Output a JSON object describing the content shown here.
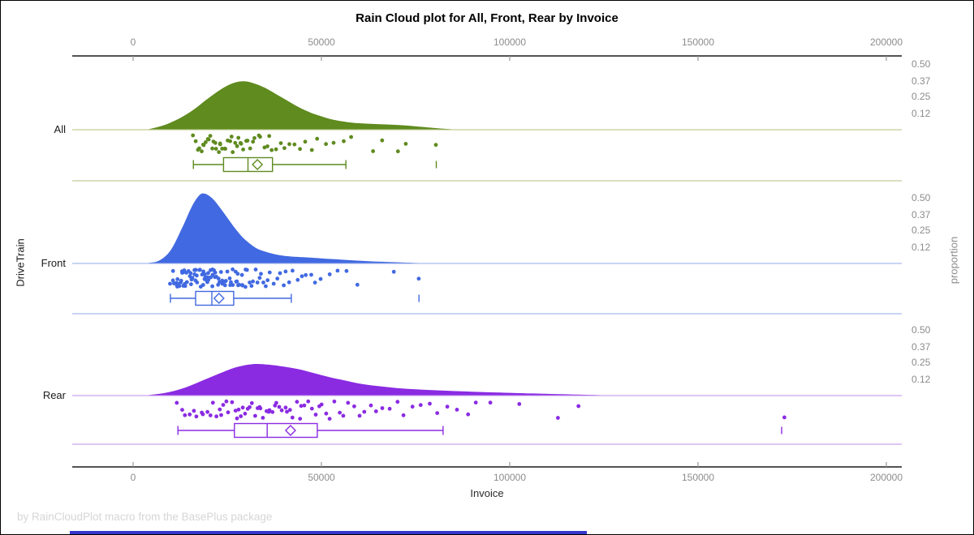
{
  "title": "Rain Cloud plot for All, Front, Rear by Invoice",
  "footer": "by RainCloudPlot macro from the BasePlus package",
  "colors": {
    "all": "#5f8b1f",
    "all_light": "#c3cc96",
    "front": "#4169e1",
    "front_light": "#a9bbea",
    "rear": "#8a2be2",
    "rear_light": "#c9a4ee",
    "axis": "#1a1a1a",
    "tick": "#9a9a9a",
    "bottom_bar": "#3535cd"
  },
  "chart_data": {
    "type": "raincloud",
    "title": "Rain Cloud plot for All, Front, Rear by Invoice",
    "xlabel": "Invoice",
    "ylabel": "DriveTrain",
    "y2label": "proportion",
    "x_tick_labels": [
      "0",
      "50000",
      "100000",
      "150000",
      "200000"
    ],
    "x_tick_values": [
      0,
      50000,
      100000,
      150000,
      200000
    ],
    "x_range": [
      -16000,
      204000
    ],
    "proportion_tick_labels": [
      "0.50",
      "0.37",
      "0.25",
      "0.12"
    ],
    "proportion_tick_values": [
      0.5,
      0.37,
      0.25,
      0.12
    ],
    "groups": [
      {
        "name": "All",
        "color": "#5f8b1f",
        "light_color": "#c3cc96",
        "density_x": [
          4000,
          8000,
          12000,
          16000,
          20000,
          24000,
          27000,
          29500,
          32000,
          35000,
          38000,
          41000,
          44000,
          47000,
          50000,
          53000,
          57000,
          61000,
          65000,
          69000,
          73000,
          77000,
          81000,
          85000
        ],
        "density_p": [
          0.0,
          0.03,
          0.08,
          0.15,
          0.24,
          0.32,
          0.36,
          0.37,
          0.355,
          0.32,
          0.27,
          0.22,
          0.17,
          0.13,
          0.1,
          0.075,
          0.055,
          0.045,
          0.04,
          0.035,
          0.028,
          0.018,
          0.008,
          0.0
        ],
        "points": [
          16200,
          16800,
          17300,
          17800,
          18200,
          18600,
          19000,
          19400,
          19800,
          20100,
          20500,
          20900,
          21300,
          21700,
          22100,
          22500,
          22900,
          23300,
          23800,
          24200,
          24600,
          25100,
          25500,
          26000,
          26400,
          26900,
          27400,
          27900,
          28400,
          28900,
          29400,
          30000,
          30500,
          31100,
          31800,
          32400,
          33100,
          33800,
          34600,
          35400,
          36200,
          37100,
          38000,
          39000,
          40100,
          41300,
          42600,
          44000,
          45500,
          47200,
          49000,
          51000,
          53200,
          55600,
          58200,
          63400,
          66000,
          70300,
          72600,
          80600
        ],
        "box": {
          "whisker_low": 16000,
          "q1": 24000,
          "median": 30500,
          "mean": 33000,
          "q3": 37000,
          "whisker_high": 56500,
          "outliers": [
            80500
          ]
        }
      },
      {
        "name": "Front",
        "color": "#4169e1",
        "light_color": "#a9bbea",
        "density_x": [
          4000,
          7000,
          10000,
          13000,
          15500,
          17500,
          19000,
          21000,
          23000,
          25000,
          27000,
          29000,
          31000,
          33000,
          36000,
          39000,
          42000,
          45000,
          48000,
          52000,
          56000,
          60000,
          64000,
          68000,
          72000,
          76000
        ],
        "density_p": [
          0.0,
          0.02,
          0.1,
          0.27,
          0.43,
          0.52,
          0.535,
          0.5,
          0.43,
          0.35,
          0.27,
          0.2,
          0.15,
          0.11,
          0.08,
          0.06,
          0.05,
          0.045,
          0.04,
          0.032,
          0.025,
          0.018,
          0.012,
          0.008,
          0.004,
          0.0
        ],
        "points": [
          9900,
          10300,
          10600,
          10900,
          11200,
          11500,
          11700,
          11900,
          12100,
          12300,
          12500,
          12700,
          12900,
          13100,
          13300,
          13500,
          13700,
          13900,
          14100,
          14300,
          14500,
          14700,
          14900,
          15100,
          15300,
          15500,
          15700,
          15900,
          16100,
          16300,
          16500,
          16700,
          16900,
          17100,
          17300,
          17500,
          17700,
          17900,
          18100,
          18300,
          18500,
          18700,
          18900,
          19100,
          19300,
          19500,
          19700,
          19900,
          20100,
          20300,
          20500,
          20700,
          20900,
          21100,
          21300,
          21500,
          21700,
          21900,
          22100,
          22400,
          22700,
          23000,
          23300,
          23600,
          23900,
          24200,
          24500,
          24800,
          25100,
          25400,
          25700,
          26000,
          26300,
          26600,
          26900,
          27200,
          27500,
          27800,
          28100,
          28400,
          28700,
          29000,
          29300,
          29700,
          30100,
          30500,
          30900,
          31300,
          31800,
          32300,
          32800,
          33300,
          33900,
          34500,
          35100,
          35800,
          36500,
          37200,
          38000,
          38800,
          39700,
          40600,
          41600,
          42600,
          43700,
          44800,
          46000,
          47300,
          48600,
          50000,
          52000,
          54000,
          56500,
          59700,
          69000,
          75900
        ],
        "box": {
          "whisker_low": 9900,
          "q1": 16600,
          "median": 20900,
          "mean": 22800,
          "q3": 26700,
          "whisker_high": 42000,
          "outliers": [
            75900
          ]
        }
      },
      {
        "name": "Rear",
        "color": "#8a2be2",
        "light_color": "#c9a4ee",
        "density_x": [
          4000,
          9000,
          14000,
          19000,
          24000,
          28000,
          32000,
          36000,
          40000,
          44000,
          48000,
          52000,
          56000,
          60000,
          65000,
          70000,
          75000,
          80000,
          85000,
          90000,
          95000,
          100000,
          106000,
          112000,
          118000,
          125000
        ],
        "density_p": [
          0.0,
          0.02,
          0.06,
          0.12,
          0.18,
          0.22,
          0.24,
          0.235,
          0.22,
          0.2,
          0.17,
          0.14,
          0.115,
          0.09,
          0.07,
          0.055,
          0.045,
          0.038,
          0.032,
          0.027,
          0.022,
          0.018,
          0.013,
          0.009,
          0.005,
          0.0
        ],
        "points": [
          11900,
          13000,
          14000,
          15000,
          16000,
          17000,
          18000,
          18800,
          19600,
          20400,
          21200,
          22000,
          22700,
          23400,
          24100,
          24800,
          25500,
          26200,
          26900,
          27500,
          28100,
          28700,
          29300,
          29900,
          30500,
          31100,
          31700,
          32300,
          32900,
          33500,
          34100,
          34700,
          35300,
          35900,
          36500,
          37100,
          37700,
          38300,
          39000,
          39700,
          40400,
          41100,
          41800,
          42500,
          43300,
          44100,
          44900,
          45700,
          46600,
          47500,
          48400,
          49300,
          50300,
          51300,
          52400,
          53500,
          54700,
          55900,
          57200,
          58500,
          59900,
          61400,
          63000,
          64600,
          66300,
          68100,
          70000,
          72000,
          74100,
          76300,
          78600,
          81000,
          83500,
          86100,
          88800,
          91000,
          94600,
          102800,
          112500,
          118000,
          172900
        ],
        "box": {
          "whisker_low": 11900,
          "q1": 26900,
          "median": 35600,
          "mean": 41800,
          "q3": 48900,
          "whisker_high": 82300,
          "outliers": [
            172200
          ]
        }
      }
    ]
  }
}
